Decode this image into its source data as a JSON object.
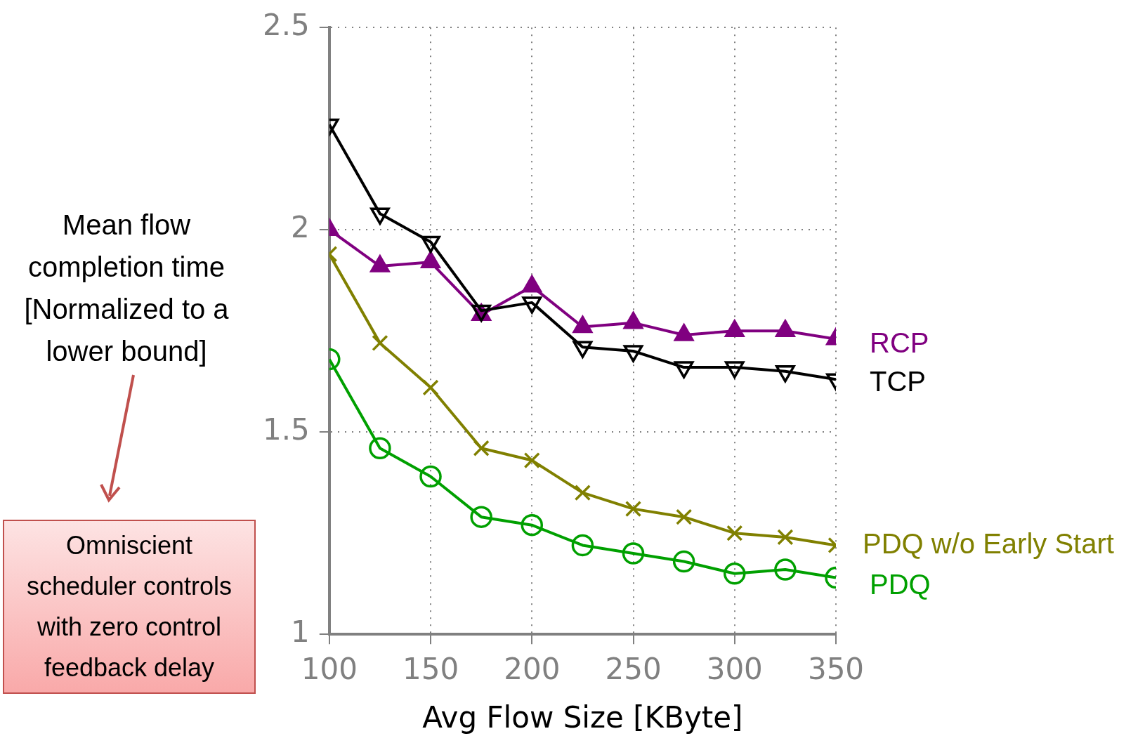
{
  "chart_data": {
    "type": "line",
    "xlabel": "Avg Flow Size [KByte]",
    "ylabel": "Mean flow completion time [Normalized to a lower bound]",
    "x": [
      100,
      125,
      150,
      175,
      200,
      225,
      250,
      275,
      300,
      325,
      350
    ],
    "xlim": [
      100,
      350
    ],
    "xticks": [
      100,
      150,
      200,
      250,
      300,
      350
    ],
    "ylim": [
      1,
      2.5
    ],
    "yticks": [
      1,
      1.5,
      2,
      2.5
    ],
    "grid": true,
    "legend": "right",
    "series": [
      {
        "name": "RCP",
        "color": "#800080",
        "marker": "triangle",
        "values": [
          2.0,
          1.91,
          1.92,
          1.79,
          1.86,
          1.76,
          1.77,
          1.74,
          1.75,
          1.75,
          1.73
        ]
      },
      {
        "name": "TCP",
        "color": "#000000",
        "marker": "triangle-down",
        "values": [
          2.26,
          2.04,
          1.97,
          1.8,
          1.82,
          1.71,
          1.7,
          1.66,
          1.66,
          1.65,
          1.63
        ]
      },
      {
        "name": "PDQ w/o Early Start",
        "color": "#808000",
        "marker": "cross",
        "values": [
          1.94,
          1.72,
          1.61,
          1.46,
          1.43,
          1.35,
          1.31,
          1.29,
          1.25,
          1.24,
          1.22
        ]
      },
      {
        "name": "PDQ",
        "color": "#00a000",
        "marker": "circle",
        "values": [
          1.68,
          1.46,
          1.39,
          1.29,
          1.27,
          1.22,
          1.2,
          1.18,
          1.15,
          1.16,
          1.14
        ]
      }
    ],
    "annotations": [
      "Omniscient scheduler controls with zero control feedback delay"
    ]
  }
}
